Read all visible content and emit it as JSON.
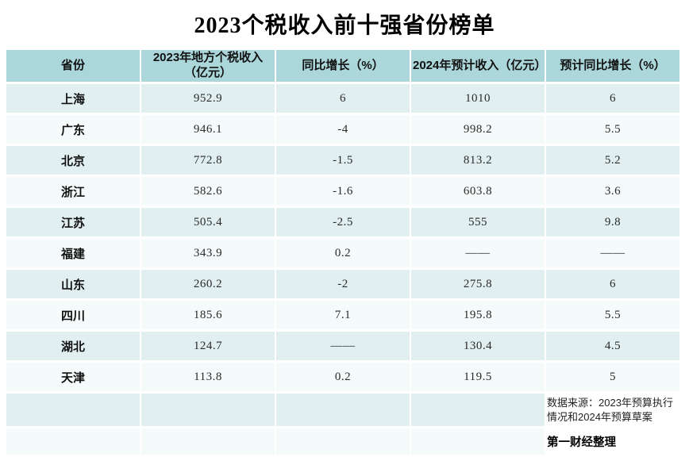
{
  "chart_data": {
    "type": "table",
    "title": "2023个税收入前十强省份榜单",
    "columns": [
      "省份",
      "2023年地方个税收入（亿元）",
      "同比增长（%）",
      "2024年预计收入（亿元）",
      "预计同比增长（%）"
    ],
    "rows": [
      [
        "上海",
        "952.9",
        "6",
        "1010",
        "6"
      ],
      [
        "广东",
        "946.1",
        "-4",
        "998.2",
        "5.5"
      ],
      [
        "北京",
        "772.8",
        "-1.5",
        "813.2",
        "5.2"
      ],
      [
        "浙江",
        "582.6",
        "-1.6",
        "603.8",
        "3.6"
      ],
      [
        "江苏",
        "505.4",
        "-2.5",
        "555",
        "9.8"
      ],
      [
        "福建",
        "343.9",
        "0.2",
        "——",
        "——"
      ],
      [
        "山东",
        "260.2",
        "-2",
        "275.8",
        "6"
      ],
      [
        "四川",
        "185.6",
        "7.1",
        "195.8",
        "5.5"
      ],
      [
        "湖北",
        "124.7",
        "——",
        "130.4",
        "4.5"
      ],
      [
        "天津",
        "113.8",
        "0.2",
        "119.5",
        "5"
      ]
    ],
    "source_note": "数据来源：2023年预算执行情况和2024年预算草案",
    "credit": "第一财经整理",
    "legend_position": "none",
    "grid": "white cell separators"
  },
  "colors": {
    "header-bg": "#abd7db",
    "row-odd-bg": "#e1eff1",
    "row-even-bg": "#f5fafb",
    "page-bg": "#ffffff",
    "text": "#1c1c1c"
  }
}
